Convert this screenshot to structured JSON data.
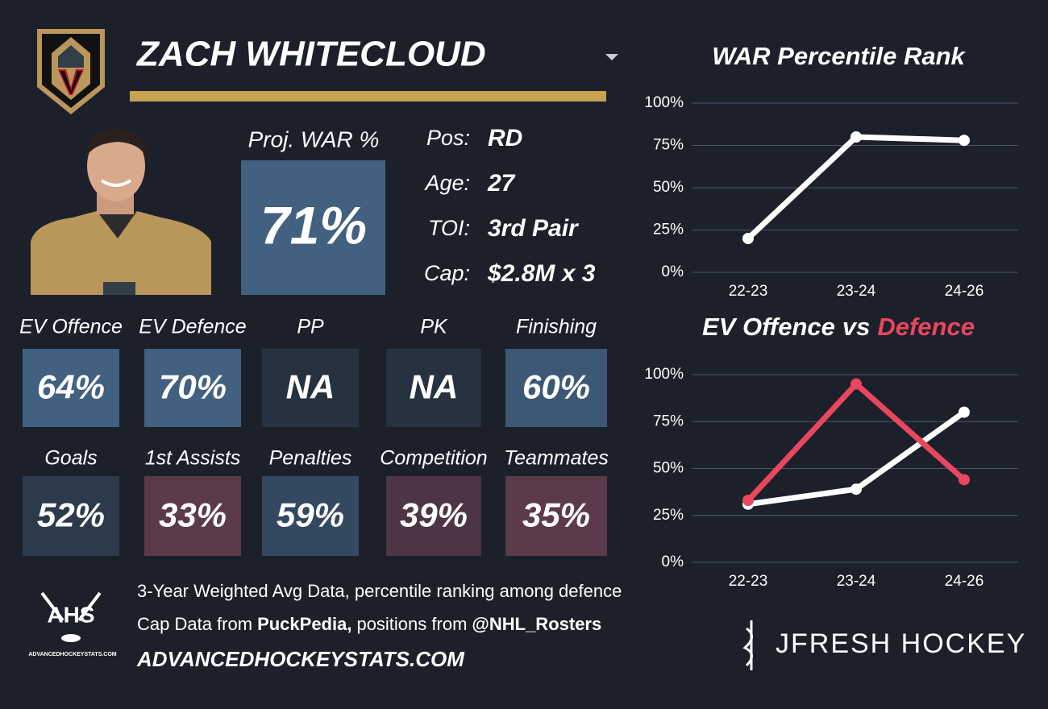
{
  "header": {
    "player_name": "ZACH WHITECLOUD"
  },
  "proj_war": {
    "label": "Proj. WAR %",
    "value": "71%",
    "color": "#42607f"
  },
  "info": [
    {
      "label": "Pos:",
      "value": "RD"
    },
    {
      "label": "Age:",
      "value": "27"
    },
    {
      "label": "TOI:",
      "value": "3rd Pair"
    },
    {
      "label": "Cap:",
      "value": "$2.8M x 3"
    }
  ],
  "tiles": [
    [
      {
        "label": "EV Offence",
        "value": "64%",
        "color": "#42607f"
      },
      {
        "label": "EV Defence",
        "value": "70%",
        "color": "#42607f"
      },
      {
        "label": "PP",
        "value": "NA",
        "color": "#273241"
      },
      {
        "label": "PK",
        "value": "NA",
        "color": "#273241"
      },
      {
        "label": "Finishing",
        "value": "60%",
        "color": "#3c5874"
      }
    ],
    [
      {
        "label": "Goals",
        "value": "52%",
        "color": "#2d3a4c"
      },
      {
        "label": "1st Assists",
        "value": "33%",
        "color": "#5b3a4b"
      },
      {
        "label": "Penalties",
        "value": "59%",
        "color": "#34485f"
      },
      {
        "label": "Competition",
        "value": "39%",
        "color": "#4b3546"
      },
      {
        "label": "Teammates",
        "value": "35%",
        "color": "#5b3a4b"
      }
    ]
  ],
  "footer": {
    "note_1": "3-Year Weighted Avg Data, percentile ranking among defence",
    "note_2": [
      {
        "text": "Cap Data from",
        "bold": false
      },
      {
        "text": "PuckPedia,",
        "bold": true
      },
      {
        "text": "positions from",
        "bold": false
      },
      {
        "text": "@NHL_Rosters",
        "bold": true
      }
    ],
    "site": "ADVANCEDHOCKEYSTATS.COM",
    "ahs_logo": {
      "text": "AHS",
      "url": "ADVANCEDHOCKEYSTATS.COM"
    },
    "brand": "JFRESH HOCKEY"
  },
  "chart_data": [
    {
      "type": "line",
      "title": "WAR Percentile Rank",
      "categories": [
        "22-23",
        "23-24",
        "24-26"
      ],
      "series": [
        {
          "color": "#ffffff",
          "values": [
            20,
            80,
            78
          ]
        }
      ],
      "ylim": [
        0,
        100
      ],
      "yticks": [
        {
          "value": 0,
          "label": "0%"
        },
        {
          "value": 25,
          "label": "25%"
        },
        {
          "value": 50,
          "label": "50%"
        },
        {
          "value": 75,
          "label": "75%"
        },
        {
          "value": 100,
          "label": "100%"
        }
      ],
      "grid": true
    },
    {
      "type": "line",
      "title_connector": "vs",
      "categories": [
        "22-23",
        "23-24",
        "24-26"
      ],
      "series": [
        {
          "name": "EV Offence",
          "color": "#ffffff",
          "values": [
            31,
            39,
            80
          ]
        },
        {
          "name": "Defence",
          "color": "#e8475d",
          "values": [
            33,
            95,
            44
          ]
        }
      ],
      "ylim": [
        0,
        100
      ],
      "yticks": [
        {
          "value": 0,
          "label": "0%"
        },
        {
          "value": 25,
          "label": "25%"
        },
        {
          "value": 50,
          "label": "50%"
        },
        {
          "value": 75,
          "label": "75%"
        },
        {
          "value": 100,
          "label": "100%"
        }
      ],
      "grid": true
    }
  ]
}
